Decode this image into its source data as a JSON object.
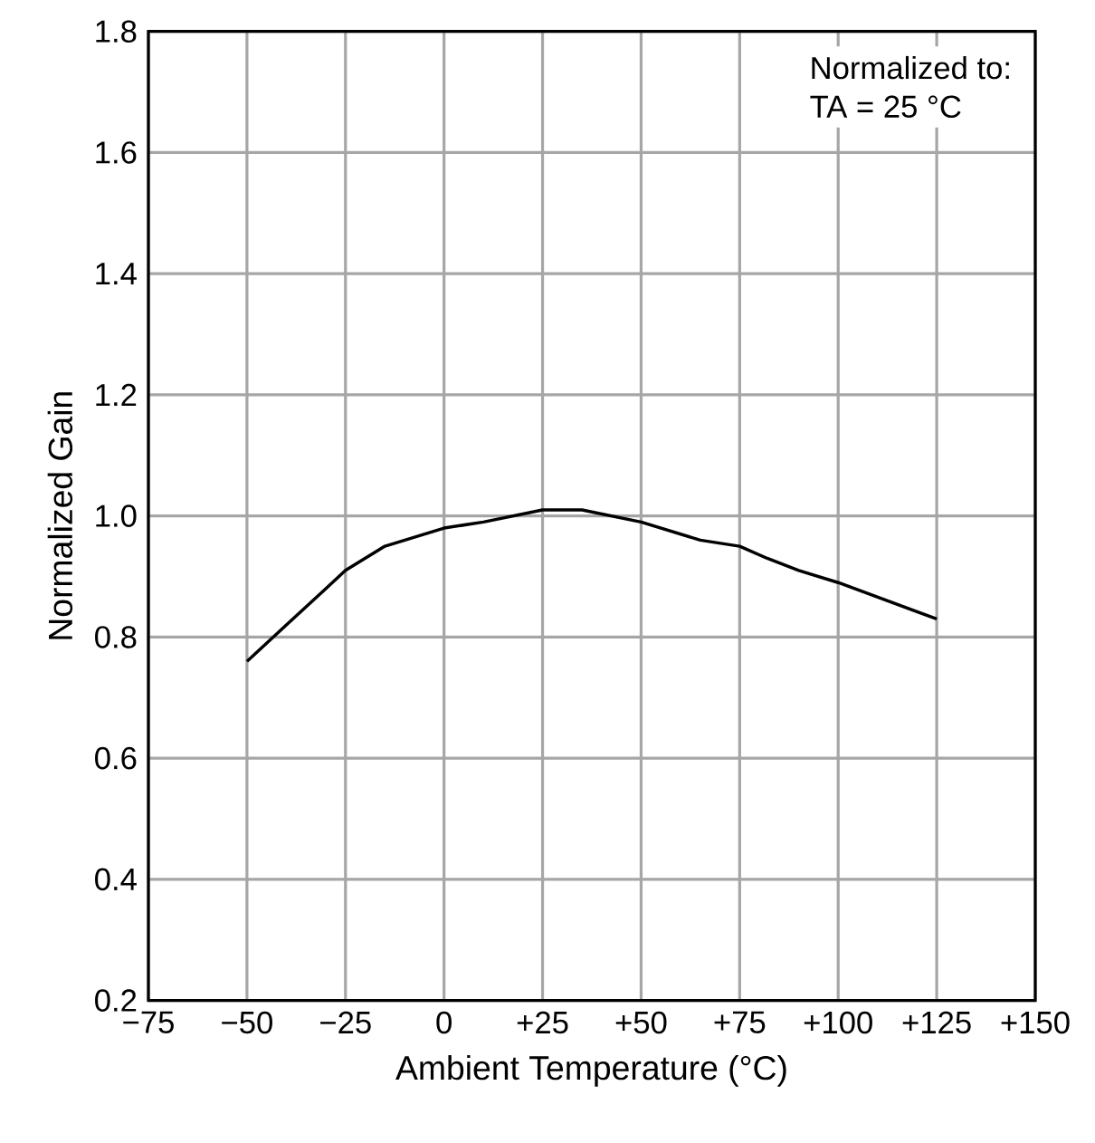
{
  "chart_data": {
    "type": "line",
    "xlabel": "Ambient Temperature (°C)",
    "ylabel": "Normalized Gain",
    "annotations": [
      "Normalized to:",
      "TA = 25 °C"
    ],
    "x": [
      -50,
      -40,
      -30,
      -25,
      -15,
      0,
      10,
      25,
      35,
      50,
      65,
      75,
      82,
      90,
      100,
      125
    ],
    "series": [
      {
        "color": "#000000",
        "values": [
          0.76,
          0.82,
          0.88,
          0.91,
          0.95,
          0.98,
          0.99,
          1.01,
          1.01,
          0.99,
          0.96,
          0.95,
          0.93,
          0.91,
          0.89,
          0.83
        ]
      }
    ],
    "xlim": [
      -75,
      150
    ],
    "ylim": [
      0.2,
      1.8
    ],
    "xticks": [
      {
        "value": -75,
        "label": "−75"
      },
      {
        "value": -50,
        "label": "−50"
      },
      {
        "value": -25,
        "label": "−25"
      },
      0,
      {
        "value": 25,
        "label": "+25"
      },
      {
        "value": 50,
        "label": "+50"
      },
      {
        "value": 75,
        "label": "+75"
      },
      {
        "value": 100,
        "label": "+100"
      },
      {
        "value": 125,
        "label": "+125"
      },
      {
        "value": 150,
        "label": "+150"
      }
    ],
    "yticks": [
      0.2,
      0.4,
      0.6,
      0.8,
      {
        "value": 1.0,
        "label": "1.0"
      },
      1.2,
      1.4,
      1.6,
      1.8
    ],
    "grid": true,
    "marker": "none",
    "line_style": "solid"
  }
}
